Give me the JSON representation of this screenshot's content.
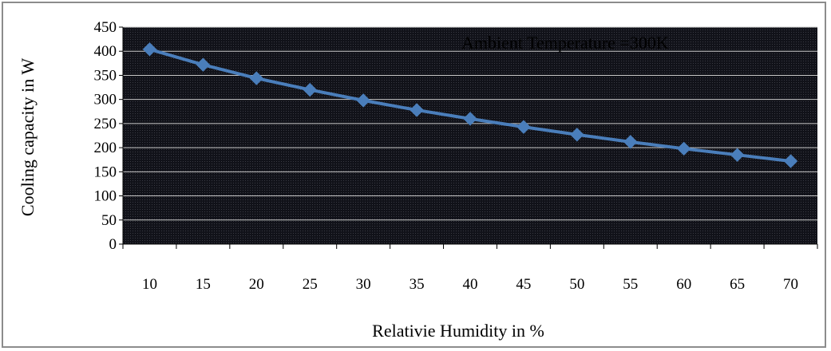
{
  "chart_data": {
    "type": "line",
    "title": "",
    "annotation": "Ambient Temperature =300K",
    "xlabel": "Relativie Humidity in %",
    "ylabel": "Cooling capacity in W",
    "categories": [
      "10",
      "15",
      "20",
      "25",
      "30",
      "35",
      "40",
      "45",
      "50",
      "55",
      "60",
      "65",
      "70"
    ],
    "y_ticks": [
      "0",
      "50",
      "100",
      "150",
      "200",
      "250",
      "300",
      "350",
      "400",
      "450"
    ],
    "ylim": [
      0,
      450
    ],
    "grid": true,
    "legend": "none",
    "series": [
      {
        "values": [
          404,
          372,
          344,
          320,
          298,
          278,
          260,
          243,
          227,
          212,
          198,
          185,
          172
        ]
      }
    ],
    "colors": {
      "plot_background": "#0f1018",
      "grid": "#c8c8c8",
      "line": "#4a7ebb",
      "marker": "#4a7ebb",
      "annotation_text": "#000000"
    }
  }
}
